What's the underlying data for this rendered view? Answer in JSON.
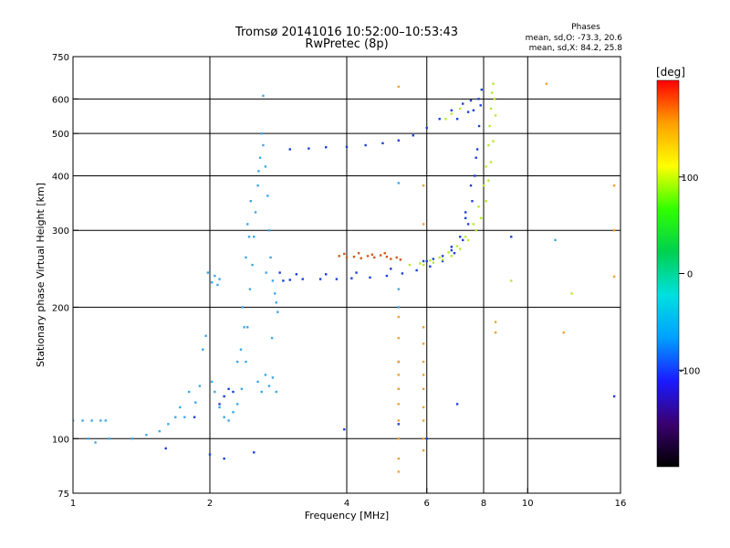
{
  "figure": {
    "title": "Tromsø 20141016 10:52:00–10:53:43",
    "subtitle": "RwPretec (8p)",
    "stats_heading": "Phases",
    "stats_o": "mean, sd,O: -73.3, 20.6",
    "stats_x": "mean, sd,X:  84.2, 25.8"
  },
  "chart_data": {
    "type": "scatter",
    "xlabel": "Frequency [MHz]",
    "ylabel": "Stationary phase Virtual Height [km]",
    "xscale": "log",
    "yscale": "log",
    "xlim": [
      1,
      16
    ],
    "ylim": [
      75,
      750
    ],
    "xticks": [
      1,
      2,
      4,
      6,
      8,
      10,
      16
    ],
    "yticks": [
      75,
      100,
      200,
      300,
      400,
      500,
      600,
      750
    ],
    "x_gridlines": [
      2,
      4,
      6,
      8,
      10
    ],
    "y_gridlines": [
      100,
      200,
      300,
      400,
      500,
      600
    ],
    "grid": true,
    "colorbar": {
      "label": "[deg]",
      "ticks": [
        100,
        0,
        -100
      ],
      "range": [
        -200,
        200
      ],
      "stops": [
        "#000000",
        "#3a0070",
        "#1a1aff",
        "#00a0ff",
        "#00e0e0",
        "#00d050",
        "#30ff00",
        "#ffff00",
        "#ffa000",
        "#ff0000"
      ]
    },
    "series": [
      {
        "color": "#3fa7e6",
        "points": [
          [
            1.0,
            110
          ],
          [
            1.05,
            110
          ],
          [
            1.1,
            110
          ],
          [
            1.15,
            110
          ],
          [
            1.18,
            110
          ],
          [
            1.08,
            100
          ],
          [
            1.12,
            98
          ],
          [
            1.2,
            100
          ],
          [
            1.35,
            100
          ],
          [
            1.45,
            102
          ],
          [
            1.55,
            104
          ],
          [
            1.62,
            108
          ],
          [
            1.68,
            112
          ],
          [
            1.72,
            118
          ],
          [
            1.76,
            112
          ],
          [
            1.8,
            128
          ],
          [
            1.86,
            121
          ],
          [
            1.9,
            132
          ],
          [
            1.93,
            160
          ],
          [
            1.96,
            172
          ],
          [
            1.98,
            240
          ],
          [
            2.02,
            228
          ],
          [
            2.05,
            236
          ],
          [
            2.08,
            225
          ],
          [
            2.1,
            232
          ],
          [
            2.02,
            135
          ],
          [
            2.05,
            128
          ],
          [
            2.1,
            118
          ],
          [
            2.15,
            112
          ],
          [
            2.2,
            110
          ],
          [
            2.25,
            115
          ],
          [
            2.3,
            120
          ],
          [
            2.35,
            130
          ],
          [
            2.4,
            150
          ],
          [
            2.42,
            180
          ],
          [
            2.45,
            220
          ],
          [
            2.48,
            250
          ],
          [
            2.5,
            290
          ],
          [
            2.52,
            330
          ],
          [
            2.55,
            380
          ],
          [
            2.58,
            440
          ],
          [
            2.6,
            500
          ],
          [
            2.62,
            470
          ],
          [
            2.65,
            420
          ],
          [
            2.68,
            360
          ],
          [
            2.7,
            300
          ],
          [
            2.72,
            260
          ],
          [
            2.75,
            230
          ],
          [
            2.78,
            215
          ],
          [
            2.8,
            205
          ],
          [
            2.82,
            195
          ],
          [
            2.55,
            135
          ],
          [
            2.6,
            128
          ],
          [
            2.65,
            140
          ],
          [
            2.7,
            132
          ],
          [
            2.75,
            138
          ],
          [
            2.8,
            128
          ],
          [
            2.4,
            260
          ],
          [
            2.42,
            310
          ],
          [
            2.46,
            350
          ],
          [
            2.36,
            200
          ],
          [
            2.38,
            180
          ],
          [
            2.62,
            610
          ],
          [
            2.34,
            160
          ],
          [
            2.3,
            150
          ],
          [
            2.44,
            290
          ],
          [
            2.56,
            410
          ],
          [
            2.66,
            240
          ],
          [
            2.74,
            170
          ],
          [
            5.2,
            100
          ],
          [
            5.2,
            130
          ],
          [
            5.2,
            200
          ],
          [
            5.2,
            220
          ],
          [
            5.2,
            385
          ],
          [
            11.5,
            285
          ]
        ]
      },
      {
        "color": "#1c40d8",
        "points": [
          [
            2.9,
            230
          ],
          [
            3.0,
            231
          ],
          [
            3.2,
            232
          ],
          [
            3.5,
            232
          ],
          [
            3.8,
            232
          ],
          [
            4.1,
            233
          ],
          [
            4.5,
            234
          ],
          [
            4.9,
            236
          ],
          [
            5.3,
            239
          ],
          [
            5.7,
            243
          ],
          [
            6.1,
            248
          ],
          [
            6.5,
            255
          ],
          [
            6.9,
            266
          ],
          [
            7.2,
            285
          ],
          [
            7.4,
            310
          ],
          [
            7.55,
            350
          ],
          [
            7.65,
            400
          ],
          [
            7.75,
            460
          ],
          [
            7.82,
            520
          ],
          [
            7.88,
            580
          ],
          [
            7.92,
            630
          ],
          [
            7.4,
            560
          ],
          [
            7.6,
            565
          ],
          [
            7.0,
            540
          ],
          [
            2.85,
            240
          ],
          [
            3.1,
            238
          ],
          [
            3.6,
            238
          ],
          [
            4.2,
            240
          ],
          [
            5.0,
            245
          ],
          [
            6.0,
            255
          ],
          [
            6.8,
            275
          ],
          [
            7.3,
            330
          ],
          [
            7.5,
            380
          ],
          [
            7.7,
            440
          ],
          [
            3.0,
            460
          ],
          [
            3.3,
            462
          ],
          [
            3.6,
            465
          ],
          [
            4.0,
            466
          ],
          [
            4.4,
            470
          ],
          [
            4.8,
            475
          ],
          [
            5.2,
            482
          ],
          [
            5.6,
            495
          ],
          [
            6.0,
            515
          ],
          [
            6.4,
            540
          ],
          [
            6.8,
            565
          ],
          [
            7.2,
            585
          ],
          [
            7.5,
            595
          ],
          [
            7.8,
            600
          ],
          [
            5.9,
            255
          ],
          [
            6.2,
            258
          ],
          [
            6.5,
            262
          ],
          [
            6.8,
            270
          ],
          [
            7.1,
            290
          ],
          [
            7.3,
            320
          ],
          [
            2.1,
            120
          ],
          [
            2.15,
            125
          ],
          [
            2.2,
            130
          ],
          [
            2.25,
            128
          ],
          [
            1.85,
            112
          ],
          [
            3.95,
            105
          ],
          [
            5.2,
            108
          ],
          [
            5.2,
            150
          ],
          [
            7.0,
            120
          ],
          [
            9.2,
            290
          ],
          [
            15.5,
            125
          ],
          [
            2.5,
            93
          ],
          [
            1.6,
            95
          ],
          [
            2.0,
            92
          ],
          [
            2.15,
            90
          ],
          [
            6.0,
            100
          ]
        ]
      },
      {
        "color": "#d05a1a",
        "points": [
          [
            3.85,
            262
          ],
          [
            4.0,
            260
          ],
          [
            4.15,
            261
          ],
          [
            4.3,
            259
          ],
          [
            4.45,
            262
          ],
          [
            4.6,
            260
          ],
          [
            4.75,
            263
          ],
          [
            4.9,
            261
          ],
          [
            5.0,
            258
          ],
          [
            5.15,
            260
          ],
          [
            5.25,
            257
          ],
          [
            3.95,
            265
          ],
          [
            4.25,
            266
          ],
          [
            4.55,
            264
          ],
          [
            4.85,
            266
          ]
        ]
      },
      {
        "color": "#f0a030",
        "points": [
          [
            5.2,
            640
          ],
          [
            5.2,
            190
          ],
          [
            5.2,
            170
          ],
          [
            5.2,
            150
          ],
          [
            5.2,
            140
          ],
          [
            5.2,
            130
          ],
          [
            5.2,
            120
          ],
          [
            5.2,
            110
          ],
          [
            5.2,
            100
          ],
          [
            5.2,
            90
          ],
          [
            5.2,
            84
          ],
          [
            5.9,
            380
          ],
          [
            5.9,
            310
          ],
          [
            5.9,
            180
          ],
          [
            5.9,
            165
          ],
          [
            5.9,
            150
          ],
          [
            5.9,
            140
          ],
          [
            5.9,
            130
          ],
          [
            5.9,
            118
          ],
          [
            5.9,
            110
          ],
          [
            5.9,
            100
          ],
          [
            5.9,
            94
          ],
          [
            8.5,
            185
          ],
          [
            8.5,
            175
          ],
          [
            11.0,
            650
          ],
          [
            12.0,
            175
          ],
          [
            15.5,
            235
          ],
          [
            15.5,
            300
          ],
          [
            15.5,
            380
          ]
        ]
      },
      {
        "color": "#b8e830",
        "points": [
          [
            5.5,
            250
          ],
          [
            5.8,
            252
          ],
          [
            6.1,
            256
          ],
          [
            6.4,
            260
          ],
          [
            6.7,
            267
          ],
          [
            7.0,
            276
          ],
          [
            7.3,
            290
          ],
          [
            7.6,
            310
          ],
          [
            7.8,
            340
          ],
          [
            8.0,
            380
          ],
          [
            8.1,
            420
          ],
          [
            8.2,
            470
          ],
          [
            8.25,
            520
          ],
          [
            8.3,
            570
          ],
          [
            8.35,
            620
          ],
          [
            8.4,
            650
          ],
          [
            8.45,
            600
          ],
          [
            8.5,
            550
          ],
          [
            8.4,
            480
          ],
          [
            8.3,
            430
          ],
          [
            8.2,
            390
          ],
          [
            8.1,
            350
          ],
          [
            7.9,
            320
          ],
          [
            7.7,
            300
          ],
          [
            7.4,
            285
          ],
          [
            7.1,
            272
          ],
          [
            6.8,
            262
          ],
          [
            6.5,
            257
          ],
          [
            6.2,
            253
          ],
          [
            5.9,
            250
          ],
          [
            6.6,
            540
          ],
          [
            6.8,
            555
          ],
          [
            7.1,
            570
          ],
          [
            9.2,
            230
          ],
          [
            12.5,
            215
          ]
        ]
      }
    ]
  }
}
